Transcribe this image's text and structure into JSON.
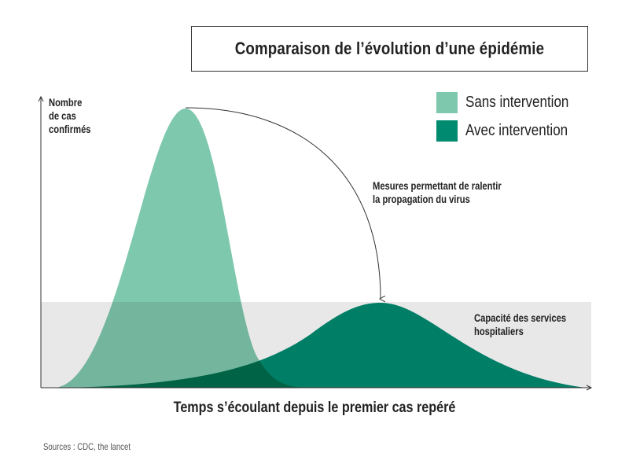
{
  "title": "Comparaison de l’évolution d’une épidémie",
  "y_axis_label": [
    "Nombre",
    "de cas",
    "confirmés"
  ],
  "x_axis_label": "Temps s’écoulant depuis le premier cas repéré",
  "legend": [
    {
      "label": "Sans intervention",
      "color": "#7ec8ad"
    },
    {
      "label": "Avec intervention",
      "color": "#008a70"
    }
  ],
  "annotation_arrow": [
    "Mesures permettant de ralentir",
    "la propagation du virus"
  ],
  "capacity_label": [
    "Capacité des services",
    "hospitaliers"
  ],
  "capacity_color": "#e8e8e8",
  "source": "Sources : CDC, the lancet"
}
